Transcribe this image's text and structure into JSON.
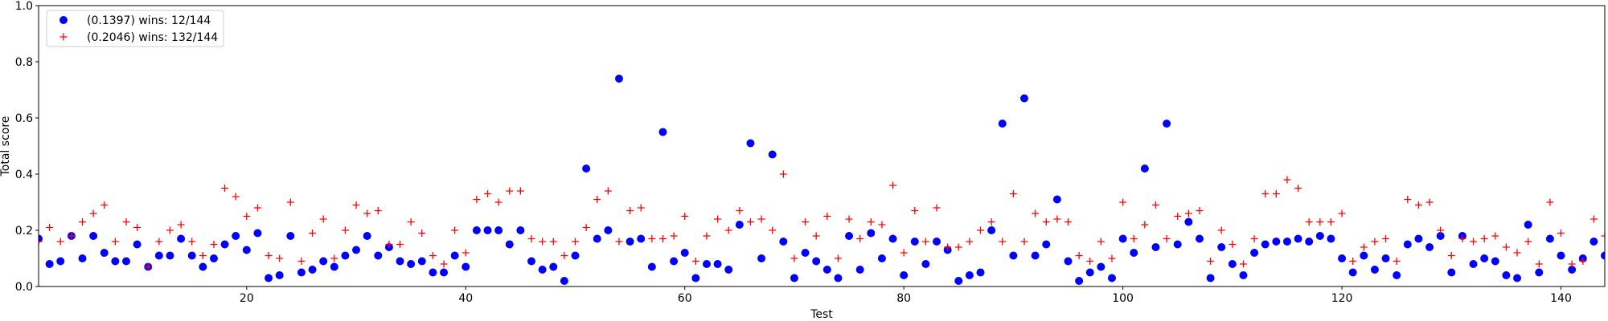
{
  "chart_data": {
    "type": "scatter",
    "xlabel": "Test",
    "ylabel": "Total score",
    "xlim": [
      1,
      144
    ],
    "ylim": [
      0.0,
      1.0
    ],
    "x_ticks": [
      20,
      40,
      60,
      80,
      100,
      120,
      140
    ],
    "x_tick_labels": [
      "20",
      "40",
      "60",
      "80",
      "100",
      "120",
      "140"
    ],
    "y_ticks": [
      0.0,
      0.2,
      0.4,
      0.6,
      0.8,
      1.0
    ],
    "y_tick_labels": [
      "0.0",
      "0.2",
      "0.4",
      "0.6",
      "0.8",
      "1.0"
    ],
    "grid": false,
    "legend_position": "top-left",
    "series": [
      {
        "name": "(0.1397) wins: 12/144",
        "marker": "circle",
        "color": "#0000ff",
        "values": [
          0.17,
          0.08,
          0.09,
          0.18,
          0.1,
          0.18,
          0.12,
          0.09,
          0.09,
          0.15,
          0.07,
          0.11,
          0.11,
          0.17,
          0.11,
          0.07,
          0.1,
          0.15,
          0.18,
          0.13,
          0.19,
          0.03,
          0.04,
          0.18,
          0.05,
          0.06,
          0.09,
          0.07,
          0.11,
          0.13,
          0.18,
          0.11,
          0.14,
          0.09,
          0.08,
          0.09,
          0.05,
          0.05,
          0.11,
          0.07,
          0.2,
          0.2,
          0.2,
          0.15,
          0.2,
          0.09,
          0.06,
          0.07,
          0.02,
          0.11,
          0.42,
          0.17,
          0.2,
          0.74,
          0.16,
          0.17,
          0.07,
          0.55,
          0.09,
          0.12,
          0.03,
          0.08,
          0.08,
          0.06,
          0.22,
          0.51,
          0.1,
          0.47,
          0.16,
          0.03,
          0.12,
          0.09,
          0.06,
          0.03,
          0.18,
          0.06,
          0.19,
          0.1,
          0.17,
          0.04,
          0.16,
          0.08,
          0.16,
          0.13,
          0.02,
          0.04,
          0.05,
          0.2,
          0.58,
          0.11,
          0.67,
          0.11,
          0.15,
          0.31,
          0.09,
          0.02,
          0.05,
          0.07,
          0.03,
          0.17,
          0.12,
          0.42,
          0.14,
          0.58,
          0.15,
          0.23,
          0.17,
          0.03,
          0.14,
          0.08,
          0.04,
          0.12,
          0.15,
          0.16,
          0.16,
          0.17,
          0.16,
          0.18,
          0.17,
          0.1,
          0.05,
          0.11,
          0.06,
          0.1,
          0.04,
          0.15,
          0.17,
          0.14,
          0.18,
          0.05,
          0.18,
          0.08,
          0.1,
          0.09,
          0.04,
          0.03,
          0.22,
          0.05,
          0.17,
          0.11,
          0.06,
          0.1,
          0.16,
          0.11
        ]
      },
      {
        "name": "(0.2046) wins: 132/144",
        "marker": "plus",
        "color": "#ff0000",
        "values": [
          0.16,
          0.21,
          0.16,
          0.18,
          0.23,
          0.26,
          0.29,
          0.16,
          0.23,
          0.21,
          0.07,
          0.16,
          0.2,
          0.22,
          0.16,
          0.11,
          0.15,
          0.35,
          0.32,
          0.25,
          0.28,
          0.11,
          0.1,
          0.3,
          0.09,
          0.19,
          0.24,
          0.1,
          0.2,
          0.29,
          0.26,
          0.27,
          0.15,
          0.15,
          0.23,
          0.19,
          0.11,
          0.08,
          0.2,
          0.12,
          0.31,
          0.33,
          0.3,
          0.34,
          0.34,
          0.17,
          0.16,
          0.16,
          0.11,
          0.16,
          0.21,
          0.31,
          0.34,
          0.16,
          0.27,
          0.28,
          0.17,
          0.17,
          0.18,
          0.25,
          0.09,
          0.18,
          0.24,
          0.2,
          0.27,
          0.23,
          0.24,
          0.2,
          0.4,
          0.1,
          0.23,
          0.18,
          0.25,
          0.1,
          0.24,
          0.17,
          0.23,
          0.22,
          0.36,
          0.12,
          0.27,
          0.16,
          0.28,
          0.14,
          0.14,
          0.16,
          0.2,
          0.23,
          0.16,
          0.33,
          0.16,
          0.26,
          0.23,
          0.24,
          0.23,
          0.11,
          0.09,
          0.16,
          0.1,
          0.3,
          0.17,
          0.22,
          0.29,
          0.17,
          0.25,
          0.26,
          0.27,
          0.09,
          0.2,
          0.15,
          0.08,
          0.17,
          0.33,
          0.33,
          0.38,
          0.35,
          0.23,
          0.23,
          0.23,
          0.26,
          0.09,
          0.14,
          0.16,
          0.17,
          0.09,
          0.31,
          0.29,
          0.3,
          0.2,
          0.11,
          0.17,
          0.16,
          0.17,
          0.18,
          0.14,
          0.12,
          0.16,
          0.08,
          0.3,
          0.19,
          0.08,
          0.09,
          0.24,
          0.18
        ]
      }
    ]
  }
}
